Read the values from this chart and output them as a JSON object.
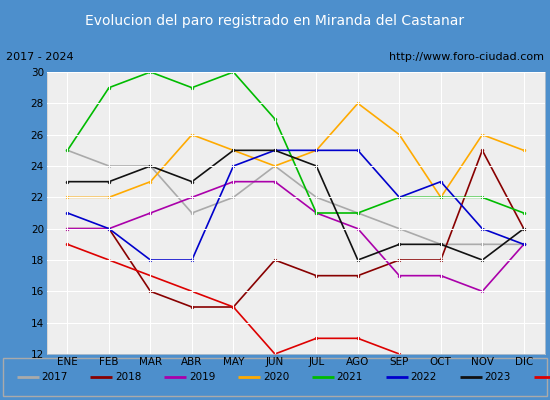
{
  "title": "Evolucion del paro registrado en Miranda del Castanar",
  "subtitle_left": "2017 - 2024",
  "subtitle_right": "http://www.foro-ciudad.com",
  "months": [
    "ENE",
    "FEB",
    "MAR",
    "ABR",
    "MAY",
    "JUN",
    "JUL",
    "AGO",
    "SEP",
    "OCT",
    "NOV",
    "DIC"
  ],
  "ylim": [
    12,
    30
  ],
  "yticks": [
    12,
    14,
    16,
    18,
    20,
    22,
    24,
    26,
    28,
    30
  ],
  "series": {
    "2017": {
      "color": "#aaaaaa",
      "data": [
        25,
        24,
        24,
        21,
        22,
        24,
        22,
        21,
        20,
        19,
        19,
        19
      ]
    },
    "2018": {
      "color": "#880000",
      "data": [
        20,
        20,
        16,
        15,
        15,
        18,
        17,
        17,
        18,
        18,
        25,
        20
      ]
    },
    "2019": {
      "color": "#aa00aa",
      "data": [
        20,
        20,
        21,
        22,
        23,
        23,
        21,
        20,
        17,
        17,
        16,
        19
      ]
    },
    "2020": {
      "color": "#ffaa00",
      "data": [
        22,
        22,
        23,
        26,
        25,
        24,
        25,
        28,
        26,
        22,
        26,
        25
      ]
    },
    "2021": {
      "color": "#00bb00",
      "data": [
        25,
        29,
        30,
        29,
        30,
        27,
        21,
        21,
        22,
        22,
        22,
        21
      ]
    },
    "2022": {
      "color": "#0000cc",
      "data": [
        21,
        20,
        18,
        18,
        24,
        25,
        25,
        25,
        22,
        23,
        20,
        19
      ]
    },
    "2023": {
      "color": "#111111",
      "data": [
        23,
        23,
        24,
        23,
        25,
        25,
        24,
        18,
        19,
        19,
        18,
        20
      ]
    },
    "2024": {
      "color": "#dd0000",
      "data": [
        19,
        null,
        null,
        null,
        15,
        12,
        13,
        13,
        12,
        null,
        null,
        null
      ]
    }
  },
  "title_bgcolor": "#4d8fcc",
  "title_color": "#ffffff",
  "plot_bgcolor": "#eeeeee",
  "grid_color": "#ffffff"
}
